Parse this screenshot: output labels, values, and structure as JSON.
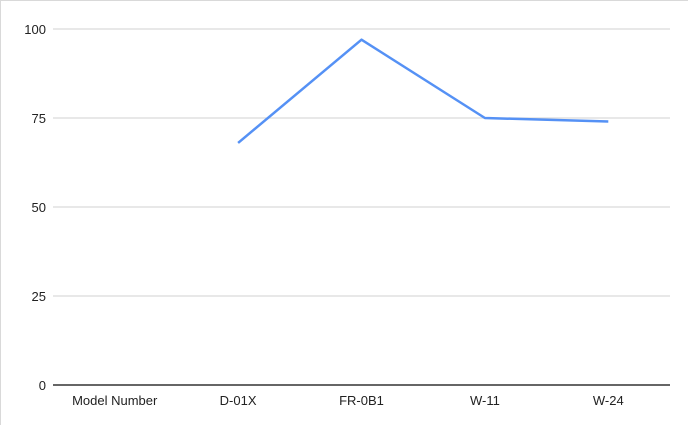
{
  "chart_data": {
    "type": "line",
    "title": "",
    "xlabel": "",
    "ylabel": "",
    "categories": [
      "Model Number",
      "D-01X",
      "FR-0B1",
      "W-11",
      "W-24"
    ],
    "series": [
      {
        "values": [
          null,
          68,
          97,
          75,
          74
        ],
        "color": "#5591f5"
      }
    ],
    "ylim": [
      0,
      100
    ],
    "yticks": [
      0,
      25,
      50,
      75,
      100
    ],
    "grid": true,
    "legend": "none"
  }
}
